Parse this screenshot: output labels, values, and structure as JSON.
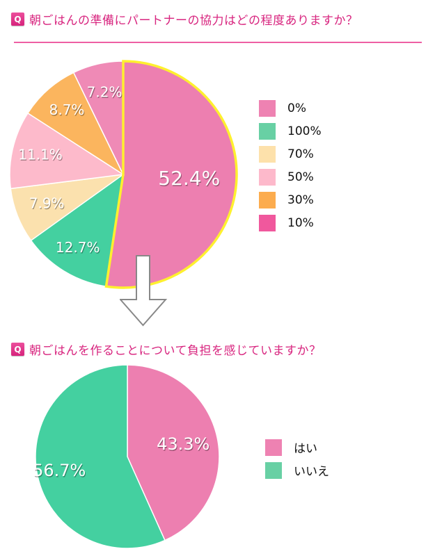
{
  "question1": {
    "badge": "Q",
    "title": "朝ごはんの準備にパートナーの協力はどの程度ありますか？"
  },
  "question2": {
    "badge": "Q",
    "title": "朝ごはんを作ることについて負担を感じていますか？"
  },
  "chart_data": [
    {
      "type": "pie",
      "title": "朝ごはんの準備にパートナーの協力はどの程度ありますか？",
      "categories": [
        "0%",
        "100%",
        "70%",
        "50%",
        "30%",
        "10%"
      ],
      "values": [
        52.4,
        12.7,
        7.9,
        11.1,
        8.7,
        7.2
      ],
      "labels": [
        "52.4%",
        "12.7%",
        "7.9%",
        "11.1%",
        "8.7%",
        "7.2%"
      ],
      "colors": [
        "#ed7fb0",
        "#44d0a0",
        "#fbe1ae",
        "#fdbacb",
        "#fbb55e",
        "#ef8ab6"
      ],
      "highlighted": "0%",
      "highlight_color": "#fef02f",
      "legend_position": "right",
      "start_angle": "12 o'clock, clockwise"
    },
    {
      "type": "pie",
      "title": "朝ごはんを作ることについて負担を感じていますか？",
      "categories": [
        "はい",
        "いいえ"
      ],
      "values": [
        43.3,
        56.7
      ],
      "labels": [
        "43.3%",
        "56.7%"
      ],
      "colors": [
        "#ed7fb0",
        "#44d0a0"
      ],
      "legend_position": "right",
      "start_angle": "12 o'clock, clockwise"
    }
  ],
  "legend1": [
    {
      "label": "0%",
      "color": "#ee82b2"
    },
    {
      "label": "100%",
      "color": "#68d0a4"
    },
    {
      "label": "70%",
      "color": "#fde1ab"
    },
    {
      "label": "50%",
      "color": "#fdb9cb"
    },
    {
      "label": "30%",
      "color": "#fcac4e"
    },
    {
      "label": "10%",
      "color": "#f0589d"
    }
  ],
  "legend2": [
    {
      "label": "はい",
      "color": "#ee82b2"
    },
    {
      "label": "いいえ",
      "color": "#68d0a4"
    }
  ],
  "arrow": {
    "icon": "down-arrow-icon",
    "color": "#888888"
  }
}
